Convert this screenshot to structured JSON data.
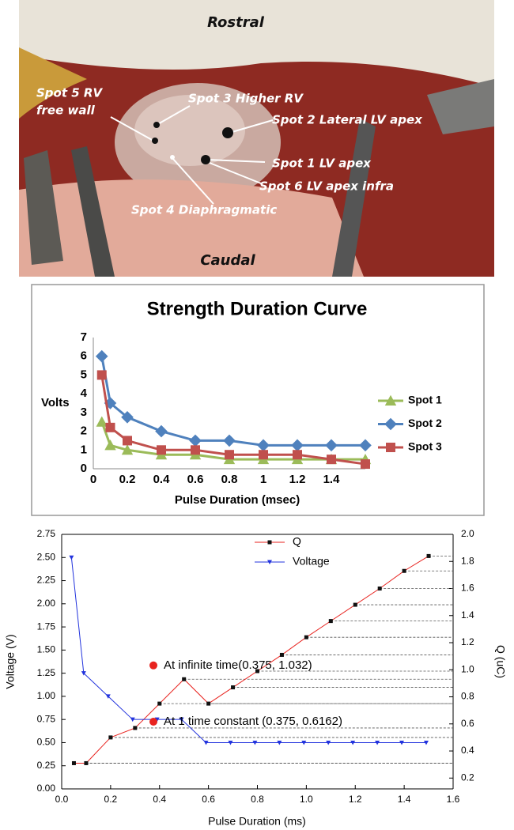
{
  "photo": {
    "top": "Rostral",
    "bottom": "Caudal",
    "spots": [
      {
        "lines": [
          "Spot 5 RV",
          "free wall"
        ]
      },
      {
        "lines": [
          "Spot 3 Higher RV"
        ]
      },
      {
        "lines": [
          "Spot 2 Lateral LV apex"
        ]
      },
      {
        "lines": [
          "Spot 1 LV apex"
        ]
      },
      {
        "lines": [
          "Spot 6 LV apex infra"
        ]
      },
      {
        "lines": [
          "Spot 4 Diaphragmatic"
        ]
      }
    ]
  },
  "chart_data": [
    {
      "type": "line",
      "title": "Strength Duration Curve",
      "ylabel": "Volts",
      "xlabel": "Pulse Duration (msec)",
      "x": [
        0.05,
        0.1,
        0.2,
        0.4,
        0.6,
        0.8,
        1.0,
        1.2,
        1.4,
        1.6
      ],
      "xlim": [
        0,
        1.6
      ],
      "xticks": [
        0,
        0.2,
        0.4,
        0.6,
        0.8,
        1,
        1.2,
        1.4
      ],
      "ylim": [
        0,
        7
      ],
      "yticks": [
        0,
        1,
        2,
        3,
        4,
        5,
        6,
        7
      ],
      "legend": "right",
      "series": [
        {
          "name": "Spot 1",
          "color": "#9bbb59",
          "marker": "triangle",
          "values": [
            2.5,
            1.25,
            1.0,
            0.75,
            0.75,
            0.5,
            0.5,
            0.5,
            0.5,
            0.5
          ]
        },
        {
          "name": "Spot 2",
          "color": "#4f81bd",
          "marker": "diamond",
          "values": [
            6,
            3.5,
            2.75,
            2,
            1.5,
            1.5,
            1.25,
            1.25,
            1.25,
            1.25
          ]
        },
        {
          "name": "Spot 3",
          "color": "#c0504d",
          "marker": "square",
          "values": [
            5,
            2.2,
            1.5,
            1.0,
            1.0,
            0.75,
            0.75,
            0.75,
            0.5,
            0.25
          ]
        }
      ]
    },
    {
      "type": "line",
      "xlabel": "Pulse Duration (ms)",
      "ylabel": "Voltage (V)",
      "y2label": "Q (uC)",
      "xlim": [
        0,
        1.6
      ],
      "xticks": [
        {
          "value": 0,
          "label": "0.0"
        },
        0.2,
        0.4,
        0.6,
        0.8,
        {
          "value": 1,
          "label": "1.0"
        },
        1.2,
        1.4,
        1.6
      ],
      "ylim": [
        0,
        2.75
      ],
      "yticks": [
        {
          "value": 0,
          "label": "0.00"
        },
        0.25,
        {
          "value": 0.5,
          "label": "0.50"
        },
        0.75,
        {
          "value": 1,
          "label": "1.00"
        },
        1.25,
        {
          "value": 1.5,
          "label": "1.50"
        },
        1.75,
        {
          "value": 2,
          "label": "2.00"
        },
        2.25,
        {
          "value": 2.5,
          "label": "2.50"
        },
        2.75
      ],
      "y2lim": [
        0.12,
        2.0
      ],
      "y2ticks": [
        0.2,
        0.4,
        0.6,
        0.8,
        {
          "value": 1,
          "label": "1.0"
        },
        1.2,
        1.4,
        1.6,
        1.8,
        {
          "value": 2,
          "label": "2.0"
        }
      ],
      "legend": "top",
      "series": [
        {
          "name": "Q",
          "color": "#e8231f",
          "marker": "square",
          "marker_color": "#111111",
          "axis": "y2",
          "leader_lines": true,
          "x": [
            0.05,
            0.1,
            0.2,
            0.3,
            0.4,
            0.5,
            0.6,
            0.7,
            0.8,
            0.9,
            1.0,
            1.1,
            1.2,
            1.3,
            1.4,
            1.5
          ],
          "values": [
            0.31,
            0.31,
            0.5,
            0.57,
            0.75,
            0.93,
            0.75,
            0.87,
            0.99,
            1.11,
            1.24,
            1.36,
            1.48,
            1.6,
            1.73,
            1.84
          ]
        },
        {
          "name": "Voltage",
          "color": "#2233dd",
          "marker": "triangle-down",
          "marker_color": "#2233dd",
          "x": [
            0.04,
            0.09,
            0.19,
            0.29,
            0.39,
            0.49,
            0.59,
            0.69,
            0.79,
            0.89,
            0.99,
            1.09,
            1.19,
            1.29,
            1.39,
            1.49
          ],
          "values": [
            2.5,
            1.25,
            1.0,
            0.75,
            0.75,
            0.75,
            0.5,
            0.5,
            0.5,
            0.5,
            0.5,
            0.5,
            0.5,
            0.5,
            0.5,
            0.5
          ]
        }
      ],
      "annotations": [
        {
          "x": 0.375,
          "y": 1.032,
          "axis": "y2",
          "color": "#e8231f",
          "text": "At infinite time(0.375, 1.032)"
        },
        {
          "x": 0.375,
          "y": 0.6162,
          "axis": "y2",
          "color": "#e8231f",
          "text": "At 1 time constant (0.375, 0.6162)"
        }
      ]
    }
  ]
}
